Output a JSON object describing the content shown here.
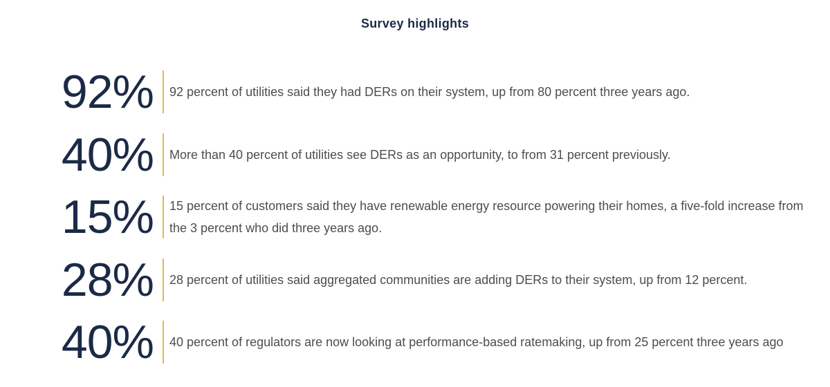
{
  "title": "Survey highlights",
  "items": [
    {
      "stat": "92%",
      "text": "92 percent of utilities said they had DERs on their system, up from 80 percent three years ago."
    },
    {
      "stat": "40%",
      "text": "More than 40 percent of utilities see DERs as an opportunity, to from 31 percent previously."
    },
    {
      "stat": "15%",
      "text": "15 percent of customers said they have renewable energy resource powering their homes, a five-fold increase from the 3 percent who did three years ago."
    },
    {
      "stat": "28%",
      "text": "28 percent of utilities said aggregated communities are adding DERs to their system, up from 12 percent."
    },
    {
      "stat": "40%",
      "text": "40 percent of regulators are now looking at performance-based ratemaking, up from 25 percent three years ago"
    }
  ]
}
